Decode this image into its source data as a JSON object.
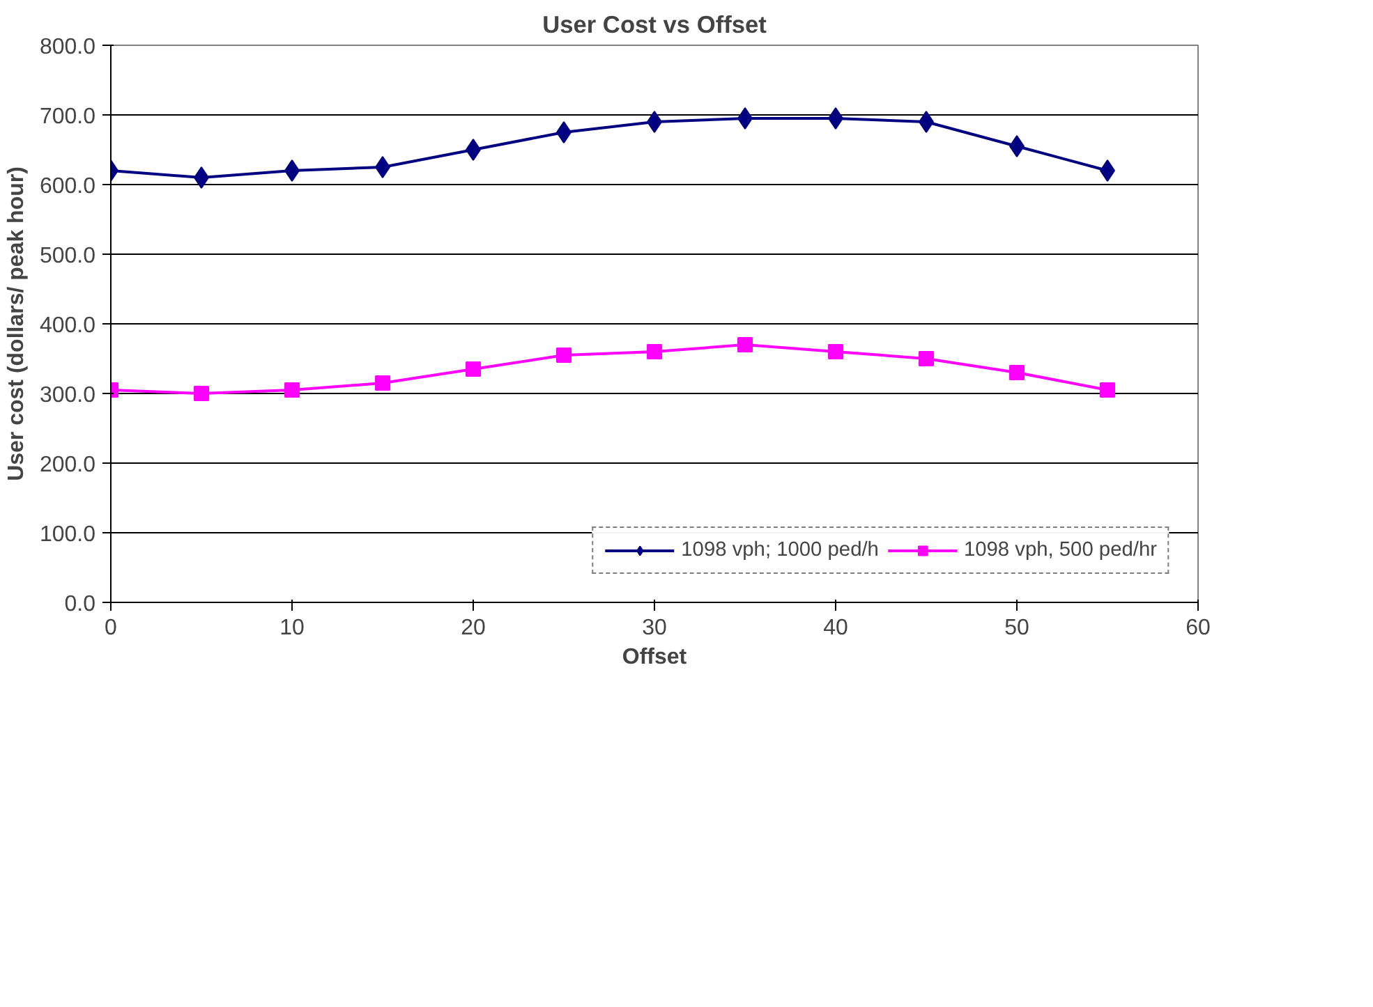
{
  "chart_data": {
    "type": "line",
    "title": "User Cost vs Offset",
    "xlabel": "Offset",
    "ylabel": "User cost (dollars/ peak hour)",
    "x": [
      0,
      5,
      10,
      15,
      20,
      25,
      30,
      35,
      40,
      45,
      50,
      55
    ],
    "series": [
      {
        "name": "1098 vph; 1000 ped/h",
        "color": "#000080",
        "marker": "diamond",
        "values": [
          620,
          610,
          620,
          625,
          650,
          675,
          690,
          695,
          695,
          690,
          655,
          620
        ]
      },
      {
        "name": "1098 vph, 500 ped/hr",
        "color": "#ff00ff",
        "marker": "square",
        "values": [
          305,
          300,
          305,
          315,
          335,
          355,
          360,
          370,
          360,
          350,
          330,
          305
        ]
      }
    ],
    "xlim": [
      0,
      60
    ],
    "xticks": [
      0,
      10,
      20,
      30,
      40,
      50,
      60
    ],
    "ylim": [
      0,
      800
    ],
    "yticks": [
      {
        "value": 0,
        "label": "0.0"
      },
      {
        "value": 100,
        "label": "100.0"
      },
      {
        "value": 200,
        "label": "200.0"
      },
      {
        "value": 300,
        "label": "300.0"
      },
      {
        "value": 400,
        "label": "400.0"
      },
      {
        "value": 500,
        "label": "500.0"
      },
      {
        "value": 600,
        "label": "600.0"
      },
      {
        "value": 700,
        "label": "700.0"
      },
      {
        "value": 800,
        "label": "800.0"
      }
    ],
    "grid": "y",
    "legend": "bottom right",
    "line_style": "solid"
  }
}
